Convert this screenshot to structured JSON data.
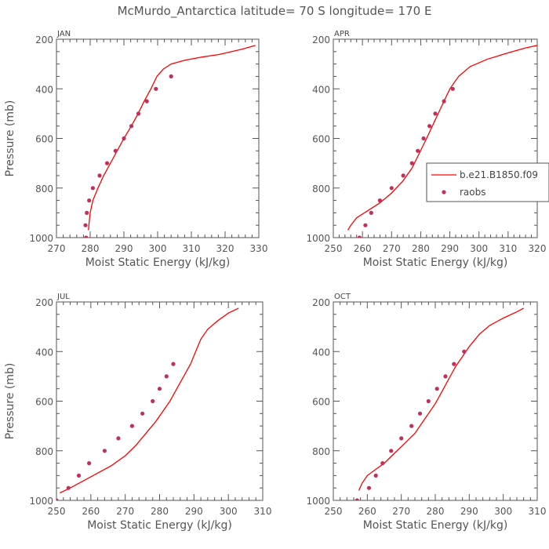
{
  "title": "McMurdo_Antarctica  latitude= 70 S longitude= 170 E",
  "legend": {
    "model_label": "b.e21.B1850.f09",
    "obs_label": "raobs",
    "model_color": "#ff0000",
    "obs_color": "#c0305a"
  },
  "chart_data": [
    {
      "type": "line",
      "panel": "JAN",
      "xlabel": "Moist Static Energy (kJ/kg)",
      "ylabel": "Pressure (mb)",
      "xlim": [
        270,
        330
      ],
      "ylim": [
        1000,
        200
      ],
      "xticks": [
        270,
        280,
        290,
        300,
        310,
        320,
        330
      ],
      "yticks": [
        1000,
        800,
        600,
        400,
        200
      ],
      "show_ylabel": true,
      "show_legend": false,
      "series": [
        {
          "name": "b.e21.B1850.f09",
          "kind": "line",
          "points": [
            [
              279.5,
              970
            ],
            [
              279.6,
              950
            ],
            [
              280.0,
              900
            ],
            [
              280.8,
              850
            ],
            [
              282.3,
              800
            ],
            [
              284.0,
              750
            ],
            [
              286.0,
              700
            ],
            [
              288.0,
              650
            ],
            [
              290.0,
              600
            ],
            [
              292.2,
              550
            ],
            [
              294.2,
              500
            ],
            [
              296.0,
              450
            ],
            [
              298.0,
              400
            ],
            [
              299.8,
              350
            ],
            [
              301.7,
              320
            ],
            [
              304.0,
              300
            ],
            [
              308.0,
              285
            ],
            [
              313.0,
              272
            ],
            [
              318.0,
              262
            ],
            [
              322.0,
              250
            ],
            [
              325.0,
              240
            ],
            [
              329.0,
              225
            ]
          ]
        },
        {
          "name": "raobs",
          "kind": "scatter",
          "points": [
            [
              278.8,
              1000
            ],
            [
              278.6,
              950
            ],
            [
              279.0,
              900
            ],
            [
              279.7,
              850
            ],
            [
              280.8,
              800
            ],
            [
              282.8,
              750
            ],
            [
              285.0,
              700
            ],
            [
              287.5,
              650
            ],
            [
              290.0,
              600
            ],
            [
              292.2,
              550
            ],
            [
              294.3,
              500
            ],
            [
              296.8,
              450
            ],
            [
              299.5,
              400
            ],
            [
              304.0,
              350
            ]
          ]
        }
      ]
    },
    {
      "type": "line",
      "panel": "APR",
      "xlabel": "Moist Static Energy (kJ/kg)",
      "ylabel": "",
      "xlim": [
        250,
        320
      ],
      "ylim": [
        1000,
        200
      ],
      "xticks": [
        250,
        260,
        270,
        280,
        290,
        300,
        310,
        320
      ],
      "yticks": [
        1000,
        800,
        600,
        400,
        200
      ],
      "show_ylabel": false,
      "show_legend": true,
      "series": [
        {
          "name": "b.e21.B1850.f09",
          "kind": "line",
          "points": [
            [
              255,
              970
            ],
            [
              256,
              950
            ],
            [
              258,
              920
            ],
            [
              262,
              890
            ],
            [
              266,
              860
            ],
            [
              270,
              820
            ],
            [
              274,
              770
            ],
            [
              277,
              720
            ],
            [
              279.5,
              660
            ],
            [
              282,
              600
            ],
            [
              284,
              550
            ],
            [
              286,
              500
            ],
            [
              288,
              450
            ],
            [
              290,
              400
            ],
            [
              293,
              350
            ],
            [
              297,
              310
            ],
            [
              303,
              280
            ],
            [
              310,
              255
            ],
            [
              316,
              235
            ],
            [
              320,
              225
            ]
          ]
        },
        {
          "name": "raobs",
          "kind": "scatter",
          "points": [
            [
              259,
              1000
            ],
            [
              261,
              950
            ],
            [
              263,
              900
            ],
            [
              266,
              850
            ],
            [
              270,
              800
            ],
            [
              274,
              750
            ],
            [
              277,
              700
            ],
            [
              279,
              650
            ],
            [
              281,
              600
            ],
            [
              283,
              550
            ],
            [
              285,
              500
            ],
            [
              288,
              450
            ],
            [
              291,
              400
            ]
          ]
        }
      ]
    },
    {
      "type": "line",
      "panel": "JUL",
      "xlabel": "Moist Static Energy (kJ/kg)",
      "ylabel": "Pressure (mb)",
      "xlim": [
        250,
        310
      ],
      "ylim": [
        1000,
        200
      ],
      "xticks": [
        250,
        260,
        270,
        280,
        290,
        300,
        310
      ],
      "yticks": [
        1000,
        800,
        600,
        400,
        200
      ],
      "show_ylabel": true,
      "show_legend": false,
      "series": [
        {
          "name": "b.e21.B1850.f09",
          "kind": "line",
          "points": [
            [
              251,
              970
            ],
            [
              254,
              950
            ],
            [
              258,
              920
            ],
            [
              262,
              890
            ],
            [
              266,
              860
            ],
            [
              270,
              820
            ],
            [
              273,
              780
            ],
            [
              276,
              730
            ],
            [
              279,
              680
            ],
            [
              281,
              640
            ],
            [
              283,
              600
            ],
            [
              285,
              550
            ],
            [
              287,
              500
            ],
            [
              289,
              450
            ],
            [
              290.5,
              400
            ],
            [
              292,
              350
            ],
            [
              294,
              310
            ],
            [
              297,
              275
            ],
            [
              300,
              245
            ],
            [
              303,
              225
            ]
          ]
        },
        {
          "name": "raobs",
          "kind": "scatter",
          "points": [
            [
              250,
              1000
            ],
            [
              253.5,
              950
            ],
            [
              256.5,
              900
            ],
            [
              259.5,
              850
            ],
            [
              264,
              800
            ],
            [
              268,
              750
            ],
            [
              272,
              700
            ],
            [
              275,
              650
            ],
            [
              278,
              600
            ],
            [
              280,
              550
            ],
            [
              282,
              500
            ],
            [
              284,
              450
            ]
          ]
        }
      ]
    },
    {
      "type": "line",
      "panel": "OCT",
      "xlabel": "Moist Static Energy (kJ/kg)",
      "ylabel": "",
      "xlim": [
        250,
        310
      ],
      "ylim": [
        1000,
        200
      ],
      "xticks": [
        250,
        260,
        270,
        280,
        290,
        300,
        310
      ],
      "yticks": [
        1000,
        800,
        600,
        400,
        200
      ],
      "show_ylabel": false,
      "show_legend": false,
      "series": [
        {
          "name": "b.e21.B1850.f09",
          "kind": "line",
          "points": [
            [
              257.5,
              960
            ],
            [
              258.5,
              930
            ],
            [
              260,
              900
            ],
            [
              262,
              880
            ],
            [
              265,
              850
            ],
            [
              268,
              810
            ],
            [
              271,
              770
            ],
            [
              274,
              730
            ],
            [
              277,
              670
            ],
            [
              280,
              610
            ],
            [
              282,
              560
            ],
            [
              284,
              510
            ],
            [
              286,
              460
            ],
            [
              288,
              420
            ],
            [
              290,
              380
            ],
            [
              293,
              330
            ],
            [
              296,
              295
            ],
            [
              300,
              265
            ],
            [
              304,
              240
            ],
            [
              306,
              225
            ]
          ]
        },
        {
          "name": "raobs",
          "kind": "scatter",
          "points": [
            [
              257,
              1000
            ],
            [
              260.5,
              950
            ],
            [
              262.5,
              900
            ],
            [
              264.5,
              850
            ],
            [
              267,
              800
            ],
            [
              270,
              750
            ],
            [
              273,
              700
            ],
            [
              275.5,
              650
            ],
            [
              278,
              600
            ],
            [
              280.5,
              550
            ],
            [
              283,
              500
            ],
            [
              285.5,
              450
            ],
            [
              288.5,
              400
            ]
          ]
        }
      ]
    }
  ]
}
